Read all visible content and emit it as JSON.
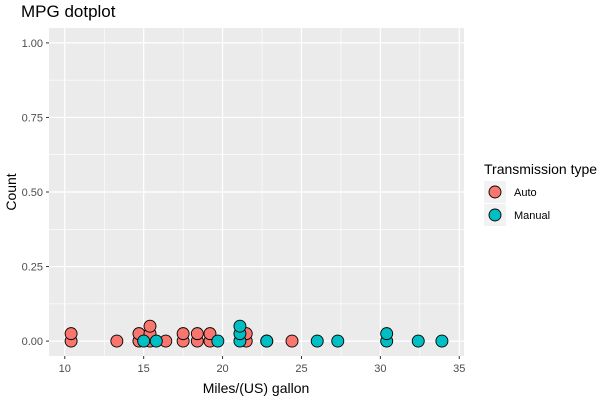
{
  "chart_data": {
    "type": "scatter",
    "subtype": "dotplot",
    "title": "MPG dotplot",
    "xlabel": "Miles/(US) gallon",
    "ylabel": "Count",
    "xlim": [
      9.0,
      35.3
    ],
    "ylim": [
      -0.05,
      1.05
    ],
    "x_ticks": [
      10,
      15,
      20,
      25,
      30,
      35
    ],
    "x_tick_labels": [
      "10",
      "15",
      "20",
      "25",
      "30",
      "35"
    ],
    "y_ticks": [
      0,
      0.25,
      0.5,
      0.75,
      1.0
    ],
    "y_tick_labels": [
      "0.00",
      "0.25",
      "0.50",
      "0.75",
      "1.00"
    ],
    "grid": true,
    "background": "#EBEBEB",
    "legend": {
      "title": "Transmission type",
      "position": "right",
      "entries": [
        {
          "label": "Auto",
          "color": "#F8766D"
        },
        {
          "label": "Manual",
          "color": "#00BFC4"
        }
      ]
    },
    "series": [
      {
        "name": "Auto",
        "color": "#F8766D",
        "points": [
          {
            "x": 10.4,
            "y": 0.0
          },
          {
            "x": 10.4,
            "y": 0.025
          },
          {
            "x": 13.3,
            "y": 0.0
          },
          {
            "x": 14.7,
            "y": 0.0
          },
          {
            "x": 14.7,
            "y": 0.025
          },
          {
            "x": 15.4,
            "y": 0.0
          },
          {
            "x": 15.4,
            "y": 0.025
          },
          {
            "x": 15.4,
            "y": 0.05
          },
          {
            "x": 16.4,
            "y": 0.0
          },
          {
            "x": 17.5,
            "y": 0.0
          },
          {
            "x": 17.5,
            "y": 0.025
          },
          {
            "x": 18.4,
            "y": 0.0
          },
          {
            "x": 18.4,
            "y": 0.025
          },
          {
            "x": 19.2,
            "y": 0.0
          },
          {
            "x": 19.2,
            "y": 0.025
          },
          {
            "x": 21.5,
            "y": 0.0
          },
          {
            "x": 21.5,
            "y": 0.025
          },
          {
            "x": 24.4,
            "y": 0.0
          }
        ]
      },
      {
        "name": "Manual",
        "color": "#00BFC4",
        "points": [
          {
            "x": 15.0,
            "y": 0.0
          },
          {
            "x": 15.8,
            "y": 0.0
          },
          {
            "x": 19.7,
            "y": 0.0
          },
          {
            "x": 21.1,
            "y": 0.0
          },
          {
            "x": 21.1,
            "y": 0.025
          },
          {
            "x": 21.1,
            "y": 0.05
          },
          {
            "x": 22.8,
            "y": 0.0
          },
          {
            "x": 22.8,
            "y": 0.0
          },
          {
            "x": 26.0,
            "y": 0.0
          },
          {
            "x": 27.3,
            "y": 0.0
          },
          {
            "x": 30.4,
            "y": 0.0
          },
          {
            "x": 30.4,
            "y": 0.025
          },
          {
            "x": 32.4,
            "y": 0.0
          },
          {
            "x": 33.9,
            "y": 0.0
          }
        ]
      }
    ]
  }
}
